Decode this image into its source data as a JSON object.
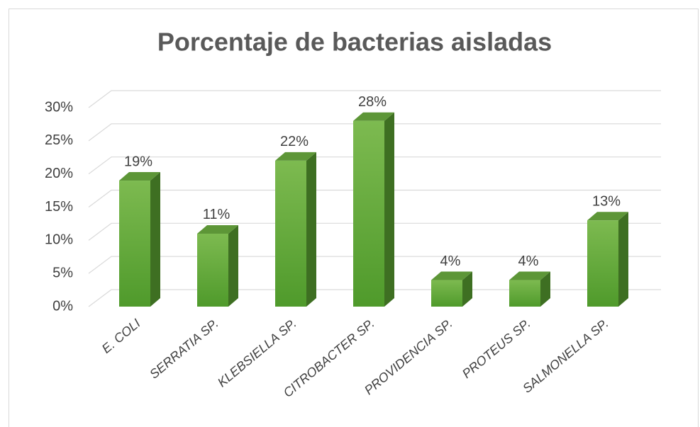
{
  "chart_data": {
    "type": "bar3d",
    "title": "Porcentaje de bacterias aisladas",
    "categories": [
      "E. COLI",
      "SERRATIA SP.",
      "KLEBSIELLA SP.",
      "CITROBACTER SP.",
      "PROVIDENCIA SP.",
      "PROTEUS SP.",
      "SALMONELLA SP."
    ],
    "values": [
      19,
      11,
      22,
      28,
      4,
      4,
      13
    ],
    "value_labels": [
      "19%",
      "11%",
      "22%",
      "28%",
      "4%",
      "4%",
      "13%"
    ],
    "color": "#6aab3e",
    "ylim": [
      0,
      30
    ],
    "yticks": [
      {
        "value": 0,
        "label": "0%"
      },
      {
        "value": 5,
        "label": "5%"
      },
      {
        "value": 10,
        "label": "10%"
      },
      {
        "value": 15,
        "label": "15%"
      },
      {
        "value": 20,
        "label": "20%"
      },
      {
        "value": 25,
        "label": "25%"
      },
      {
        "value": 30,
        "label": "30%"
      }
    ],
    "grid": true
  }
}
